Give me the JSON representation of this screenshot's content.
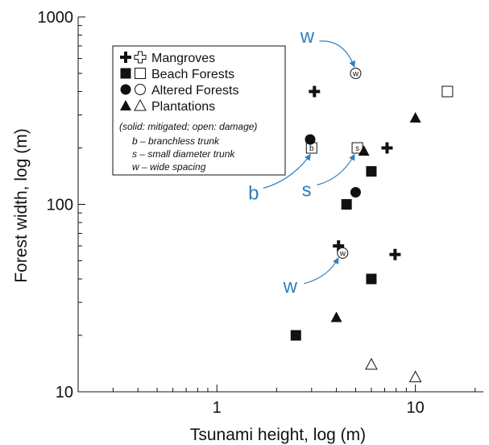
{
  "chart_data": {
    "type": "scatter",
    "title": "",
    "xlabel": "Tsunami height, log (m)",
    "ylabel": "Forest width, log (m)",
    "xscale": "log",
    "yscale": "log",
    "xlim": [
      0.2,
      22
    ],
    "ylim": [
      10,
      1000
    ],
    "x_ticks": [
      {
        "value": 1,
        "label": "1"
      },
      {
        "value": 10,
        "label": "10"
      }
    ],
    "y_ticks": [
      {
        "value": 10,
        "label": "10"
      },
      {
        "value": 100,
        "label": "100"
      },
      {
        "value": 1000,
        "label": "1000"
      }
    ],
    "grid": false,
    "legend_position": "top-left",
    "legend": {
      "entries": [
        {
          "label": "Mangroves",
          "solid_marker": "cross",
          "open_marker": "open-cross"
        },
        {
          "label": "Beach Forests",
          "solid_marker": "square",
          "open_marker": "open-square"
        },
        {
          "label": "Altered Forests",
          "solid_marker": "circle",
          "open_marker": "open-circle"
        },
        {
          "label": "Plantations",
          "solid_marker": "triangle",
          "open_marker": "open-triangle"
        }
      ],
      "note": "(solid: mitigated; open: damage)",
      "keys": [
        {
          "letter": "b",
          "text": "branchless trunk"
        },
        {
          "letter": "s",
          "text": "small diameter trunk"
        },
        {
          "letter": "w",
          "text": "wide spacing"
        }
      ]
    },
    "series": [
      {
        "name": "Mangroves",
        "marker": "cross",
        "points": [
          {
            "x": 3.1,
            "y": 400,
            "state": "mitigated"
          },
          {
            "x": 7.2,
            "y": 200,
            "state": "mitigated"
          },
          {
            "x": 4.1,
            "y": 60,
            "state": "mitigated"
          },
          {
            "x": 7.9,
            "y": 54,
            "state": "mitigated"
          }
        ]
      },
      {
        "name": "Beach Forests",
        "marker": "square",
        "points": [
          {
            "x": 14.5,
            "y": 400,
            "state": "damage"
          },
          {
            "x": 3.0,
            "y": 200,
            "state": "damage",
            "tag": "b"
          },
          {
            "x": 5.1,
            "y": 200,
            "state": "damage",
            "tag": "s"
          },
          {
            "x": 6.0,
            "y": 150,
            "state": "mitigated"
          },
          {
            "x": 4.5,
            "y": 100,
            "state": "mitigated"
          },
          {
            "x": 6.0,
            "y": 40,
            "state": "mitigated"
          },
          {
            "x": 2.5,
            "y": 20,
            "state": "mitigated"
          }
        ]
      },
      {
        "name": "Altered Forests",
        "marker": "circle",
        "points": [
          {
            "x": 5.0,
            "y": 500,
            "state": "damage",
            "tag": "w"
          },
          {
            "x": 2.95,
            "y": 222,
            "state": "mitigated"
          },
          {
            "x": 5.0,
            "y": 116,
            "state": "mitigated"
          },
          {
            "x": 4.3,
            "y": 55,
            "state": "damage",
            "tag": "w"
          }
        ]
      },
      {
        "name": "Plantations",
        "marker": "triangle",
        "points": [
          {
            "x": 10.0,
            "y": 290,
            "state": "mitigated"
          },
          {
            "x": 5.5,
            "y": 193,
            "state": "mitigated"
          },
          {
            "x": 4.0,
            "y": 25,
            "state": "mitigated"
          },
          {
            "x": 6.0,
            "y": 14,
            "state": "damage"
          },
          {
            "x": 10.0,
            "y": 12,
            "state": "damage"
          }
        ]
      }
    ],
    "annotations": [
      {
        "text": "w",
        "target": {
          "x": 5.0,
          "y": 500
        }
      },
      {
        "text": "b",
        "target": {
          "x": 3.0,
          "y": 200
        }
      },
      {
        "text": "s",
        "target": {
          "x": 5.1,
          "y": 200
        }
      },
      {
        "text": "w",
        "target": {
          "x": 4.3,
          "y": 55
        }
      }
    ]
  },
  "colors": {
    "annotation": "#2f7fbf",
    "ink": "#111111"
  }
}
